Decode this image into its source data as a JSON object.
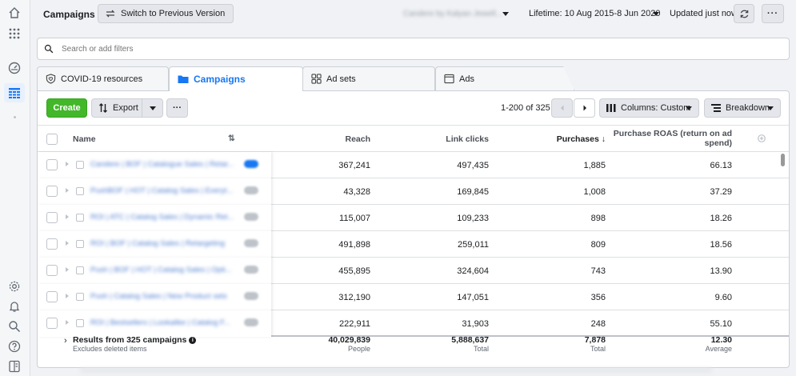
{
  "header": {
    "title": "Campaigns",
    "switch_label": "Switch to Previous Version",
    "account": "Candere by Kalyan Jewell...",
    "lifetime": "Lifetime: 10 Aug 2015-8 Jun 2020",
    "updated": "Updated just now"
  },
  "search": {
    "placeholder": "Search or add filters"
  },
  "tabs": [
    {
      "label": "COVID-19 resources"
    },
    {
      "label": "Campaigns"
    },
    {
      "label": "Ad sets"
    },
    {
      "label": "Ads"
    }
  ],
  "toolbar": {
    "create_label": "Create",
    "export_label": "Export",
    "more_label": "···",
    "pager_text": "1-200 of 325",
    "columns_label": "Columns: Custom",
    "breakdown_label": "Breakdown"
  },
  "table": {
    "headers": {
      "name": "Name",
      "reach": "Reach",
      "clicks": "Link clicks",
      "purchases": "Purchases ↓",
      "roas_line1": "Purchase ROAS (return on ad",
      "roas_line2": "spend)"
    },
    "rows": [
      {
        "name": "Candere | BOF | Catalogue Sales | Retar...",
        "reach": "367,241",
        "clicks": "497,435",
        "purchases": "1,885",
        "roas": "66.13"
      },
      {
        "name": "PushBOF | HOT | Catalog Sales | Everyt...",
        "reach": "43,328",
        "clicks": "169,845",
        "purchases": "1,008",
        "roas": "37.29"
      },
      {
        "name": "ROI | ATC | Catalog Sales | Dynamic Ret...",
        "reach": "115,007",
        "clicks": "109,233",
        "purchases": "898",
        "roas": "18.26"
      },
      {
        "name": "ROI | BOF | Catalog Sales | Retargeting",
        "reach": "491,898",
        "clicks": "259,011",
        "purchases": "809",
        "roas": "18.56"
      },
      {
        "name": "Push | BOF | HOT | Catalog Sales | Opti...",
        "reach": "455,895",
        "clicks": "324,604",
        "purchases": "743",
        "roas": "13.90"
      },
      {
        "name": "Push | Catalog Sales | New Product sets",
        "reach": "312,190",
        "clicks": "147,051",
        "purchases": "356",
        "roas": "9.60"
      },
      {
        "name": "ROI | Bestsellers | Lookalike | Catalog F...",
        "reach": "222,911",
        "clicks": "31,903",
        "purchases": "248",
        "roas": "55.10"
      }
    ],
    "footer": {
      "title": "Results from 325 campaigns",
      "subtitle": "Excludes deleted items",
      "reach": "40,029,839",
      "reach_unit": "People",
      "clicks": "5,888,637",
      "clicks_unit": "Total",
      "purchases": "7,878",
      "purchases_unit": "Total",
      "roas": "12.30",
      "roas_unit": "Average"
    }
  }
}
